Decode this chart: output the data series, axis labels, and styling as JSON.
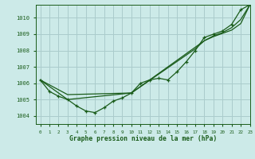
{
  "title": "Graphe pression niveau de la mer (hPa)",
  "background_color": "#cceae8",
  "grid_color": "#aacccc",
  "line_color": "#1a5c1a",
  "xlim": [
    -0.5,
    23
  ],
  "ylim": [
    1003.5,
    1010.8
  ],
  "yticks": [
    1004,
    1005,
    1006,
    1007,
    1008,
    1009,
    1010
  ],
  "xticks": [
    0,
    1,
    2,
    3,
    4,
    5,
    6,
    7,
    8,
    9,
    10,
    11,
    12,
    13,
    14,
    15,
    16,
    17,
    18,
    19,
    20,
    21,
    22,
    23
  ],
  "series1_x": [
    0,
    1,
    2,
    3,
    4,
    5,
    6,
    7,
    8,
    9,
    10,
    11,
    12,
    13,
    14,
    15,
    16,
    17,
    18,
    19,
    20,
    21,
    22,
    23
  ],
  "series1_y": [
    1006.2,
    1005.5,
    1005.2,
    1005.0,
    1004.6,
    1004.3,
    1004.2,
    1004.5,
    1004.9,
    1005.1,
    1005.4,
    1006.0,
    1006.2,
    1006.3,
    1006.2,
    1006.7,
    1007.3,
    1008.0,
    1008.8,
    1009.0,
    1009.2,
    1009.6,
    1010.5,
    1010.8
  ],
  "series2_x": [
    0,
    3,
    10,
    18,
    19,
    20,
    21,
    22,
    23
  ],
  "series2_y": [
    1006.2,
    1005.3,
    1005.4,
    1008.6,
    1008.85,
    1009.05,
    1009.25,
    1009.65,
    1010.8
  ],
  "series3_x": [
    0,
    3,
    10,
    17,
    18,
    19,
    20,
    21,
    22,
    23
  ],
  "series3_y": [
    1006.2,
    1005.0,
    1005.4,
    1008.1,
    1008.6,
    1008.9,
    1009.1,
    1009.4,
    1009.9,
    1010.8
  ]
}
